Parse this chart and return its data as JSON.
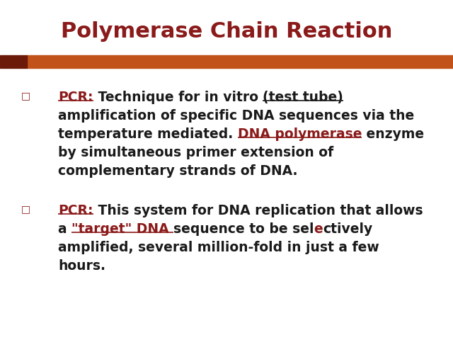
{
  "title": "Polymerase Chain Reaction",
  "title_color": "#8B1A1A",
  "title_fontsize": 22,
  "background_color": "#FFFFFF",
  "bar_color": "#C0521A",
  "bar_dark_color": "#6B1A0A",
  "bullet_color": "#8B1A1A",
  "bullet_char": "□",
  "text_color_dark": "#1A1A1A",
  "text_color_red": "#8B1A1A",
  "body_fontsize": 13.5,
  "paragraph1": [
    [
      {
        "text": "PCR:",
        "color": "#8B1A1A",
        "underline": true
      },
      {
        "text": " Technique for in vitro ",
        "color": "#1A1A1A",
        "underline": false
      },
      {
        "text": "(test tube)",
        "color": "#1A1A1A",
        "underline": true
      }
    ],
    [
      {
        "text": "amplification of specific DNA sequences via the",
        "color": "#1A1A1A",
        "underline": false
      }
    ],
    [
      {
        "text": "temperature mediated. ",
        "color": "#1A1A1A",
        "underline": false
      },
      {
        "text": "DNA polymerase",
        "color": "#8B1A1A",
        "underline": true
      },
      {
        "text": " enzyme",
        "color": "#1A1A1A",
        "underline": false
      }
    ],
    [
      {
        "text": "by simultaneous primer extension of",
        "color": "#1A1A1A",
        "underline": false
      }
    ],
    [
      {
        "text": "complementary strands of DNA.",
        "color": "#1A1A1A",
        "underline": false
      }
    ]
  ],
  "paragraph2": [
    [
      {
        "text": "PCR:",
        "color": "#8B1A1A",
        "underline": true
      },
      {
        "text": " This system for DNA replication that allows",
        "color": "#1A1A1A",
        "underline": false
      }
    ],
    [
      {
        "text": "a ",
        "color": "#1A1A1A",
        "underline": false
      },
      {
        "text": "\"target\" DNA ",
        "color": "#8B1A1A",
        "underline": true
      },
      {
        "text": "sequence to be sel",
        "color": "#1A1A1A",
        "underline": false
      },
      {
        "text": "e",
        "color": "#8B1A1A",
        "underline": false
      },
      {
        "text": "ctively",
        "color": "#1A1A1A",
        "underline": false
      }
    ],
    [
      {
        "text": "amplified, several million-fold in just a few",
        "color": "#1A1A1A",
        "underline": false
      }
    ],
    [
      {
        "text": "hours.",
        "color": "#1A1A1A",
        "underline": false
      }
    ]
  ]
}
